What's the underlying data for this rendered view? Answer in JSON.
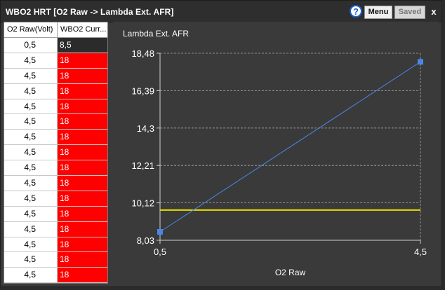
{
  "window": {
    "title": "WBO2 HRT [O2 Raw -> Lambda Ext. AFR]",
    "help_icon": "question-mark-icon",
    "help_label": "?",
    "menu_label": "Menu",
    "saved_label": "Saved",
    "close_label": "x"
  },
  "table": {
    "headers": [
      "O2 Raw(Volt)",
      "WBO2 Curr..."
    ],
    "rows": [
      [
        "0,5",
        "8,5"
      ],
      [
        "4,5",
        "18"
      ],
      [
        "4,5",
        "18"
      ],
      [
        "4,5",
        "18"
      ],
      [
        "4,5",
        "18"
      ],
      [
        "4,5",
        "18"
      ],
      [
        "4,5",
        "18"
      ],
      [
        "4,5",
        "18"
      ],
      [
        "4,5",
        "18"
      ],
      [
        "4,5",
        "18"
      ],
      [
        "4,5",
        "18"
      ],
      [
        "4,5",
        "18"
      ],
      [
        "4,5",
        "18"
      ],
      [
        "4,5",
        "18"
      ],
      [
        "4,5",
        "18"
      ],
      [
        "4,5",
        "18"
      ]
    ],
    "selected_row": 0,
    "colors": {
      "cell_highlight": "#ff0000",
      "selected_cell": "#2b2b2b"
    }
  },
  "chart_data": {
    "type": "line",
    "title": "Lambda Ext. AFR",
    "xlabel": "O2 Raw",
    "ylabel": "",
    "xlim": [
      0.5,
      4.5
    ],
    "ylim": [
      8.03,
      18.48
    ],
    "x_ticks": [
      "0,5",
      "4,5"
    ],
    "y_ticks": [
      "8,03",
      "10,12",
      "12,21",
      "14,3",
      "16,39",
      "18,48"
    ],
    "grid": true,
    "series": [
      {
        "x": [
          0.5,
          4.5
        ],
        "y": [
          8.5,
          18.0
        ],
        "color": "#4a86e8",
        "marker": "square"
      }
    ],
    "reference_line": {
      "y": 9.72,
      "color": "#e8e000"
    }
  }
}
